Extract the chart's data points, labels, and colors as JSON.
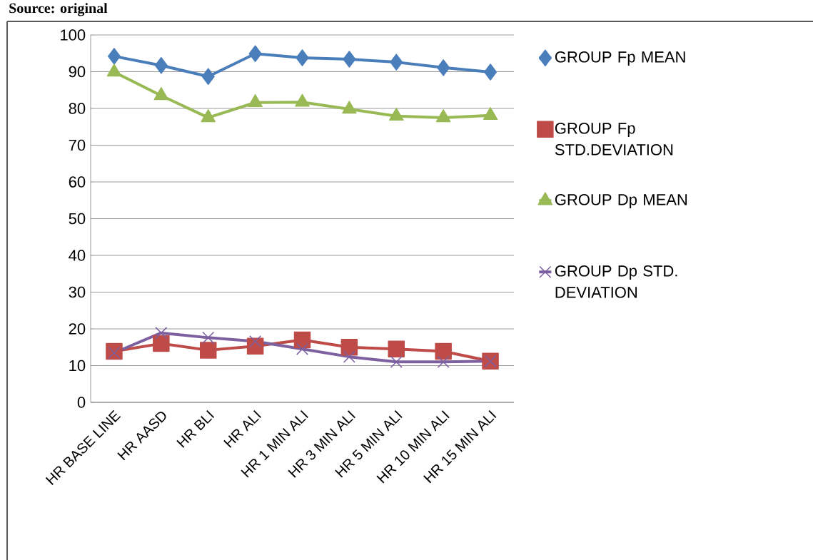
{
  "chart_data": {
    "type": "line",
    "annotations": [
      "Source: original"
    ],
    "categories": [
      "HR BASE LINE",
      "HR AASD",
      "HR BLI",
      "HR ALI",
      "HR 1 MIN ALI",
      "HR 3 MIN ALI",
      "HR 5 MIN ALI",
      "HR 10 MIN ALI",
      "HR 15 MIN ALI"
    ],
    "series": [
      {
        "name": "GROUP Fp MEAN",
        "color": "#4a7ebb",
        "marker": "diamond",
        "values": [
          94.2,
          91.7,
          88.7,
          94.9,
          93.8,
          93.4,
          92.6,
          91.1,
          89.9
        ]
      },
      {
        "name": "GROUP Fp STD.DEVIATION",
        "color": "#be4b48",
        "marker": "square",
        "values": [
          13.9,
          16.0,
          14.2,
          15.3,
          17.0,
          15.0,
          14.5,
          13.9,
          11.2
        ]
      },
      {
        "name": "GROUP Dp MEAN",
        "color": "#98b954",
        "marker": "triangle",
        "values": [
          89.9,
          83.5,
          77.5,
          81.6,
          81.7,
          79.8,
          77.9,
          77.5,
          78.1
        ]
      },
      {
        "name": "GROUP Dp STD. DEVIATION",
        "color": "#7d60a0",
        "marker": "cross",
        "values": [
          13.5,
          18.9,
          17.6,
          16.6,
          14.5,
          12.4,
          11.0,
          11.0,
          11.2
        ]
      }
    ],
    "ylim": [
      0,
      100
    ],
    "yticks": [
      0,
      10,
      20,
      30,
      40,
      50,
      60,
      70,
      80,
      90,
      100
    ],
    "grid": "y",
    "legend": "right"
  }
}
